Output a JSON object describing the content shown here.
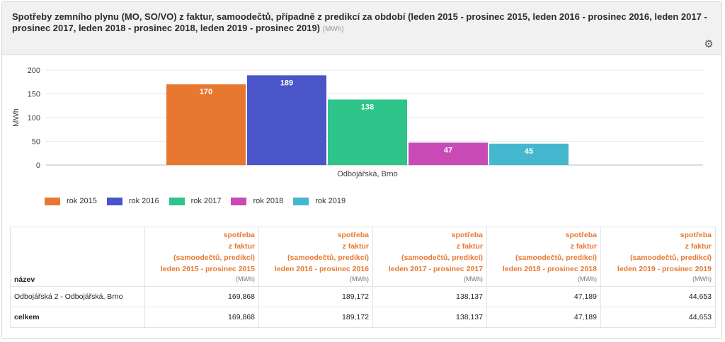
{
  "title": "Spotřeby zemního plynu (MO, SO/VO) z faktur, samoodečtů, případně z predikcí za období (leden 2015 - prosinec 2015, leden 2016 - prosinec 2016, leden 2017 - prosinec 2017, leden 2018 - prosinec 2018, leden 2019 - prosinec 2019)",
  "title_unit": "(MWh)",
  "settings_icon": "gear-icon",
  "chart_data": {
    "type": "bar",
    "categories": [
      "Odbojářská, Brno"
    ],
    "series": [
      {
        "name": "rok 2015",
        "color": "#e8782f",
        "values": [
          170
        ],
        "label": "170"
      },
      {
        "name": "rok 2016",
        "color": "#4a55c8",
        "values": [
          189
        ],
        "label": "189"
      },
      {
        "name": "rok 2017",
        "color": "#2fc48a",
        "values": [
          138
        ],
        "label": "138"
      },
      {
        "name": "rok 2018",
        "color": "#c94ab4",
        "values": [
          47
        ],
        "label": "47"
      },
      {
        "name": "rok 2019",
        "color": "#45b8cf",
        "values": [
          45
        ],
        "label": "45"
      }
    ],
    "ylabel": "MWh",
    "ylim": [
      0,
      200
    ],
    "yticks": [
      "0",
      "50",
      "100",
      "150",
      "200"
    ],
    "grid": true,
    "legend_position": "bottom-left"
  },
  "table": {
    "name_header": "název",
    "col_line1": "spotřeba",
    "col_line2": "z faktur",
    "col_line3": "(samoodečtů, predikcí)",
    "col_unit": "(MWh)",
    "periods": [
      "leden 2015 - prosinec 2015",
      "leden 2016 - prosinec 2016",
      "leden 2017 - prosinec 2017",
      "leden 2018 - prosinec 2018",
      "leden 2019 - prosinec 2019"
    ],
    "rows": [
      {
        "name": "Odbojářská 2 - Odbojářská, Brno",
        "values": [
          "169,868",
          "189,172",
          "138,137",
          "47,189",
          "44,653"
        ]
      }
    ],
    "total": {
      "name": "celkem",
      "values": [
        "169,868",
        "189,172",
        "138,137",
        "47,189",
        "44,653"
      ]
    }
  }
}
